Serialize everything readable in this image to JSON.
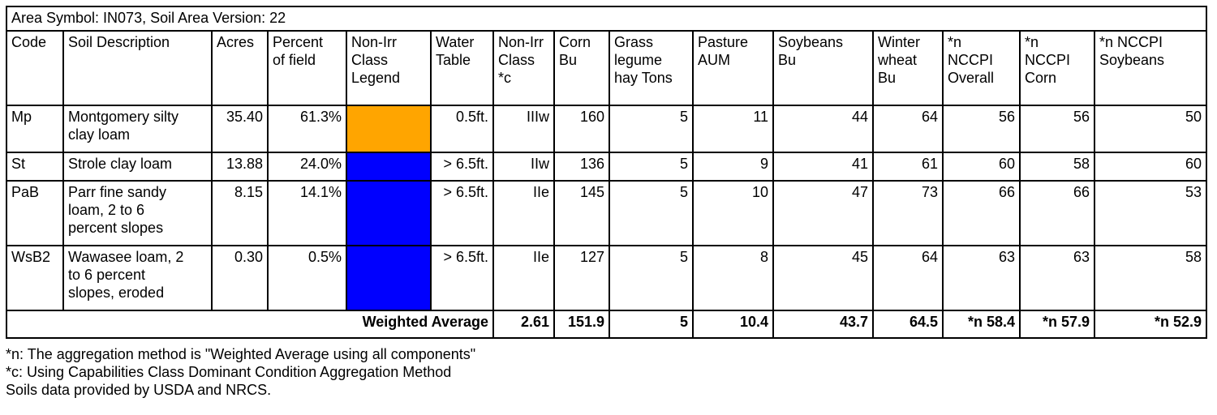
{
  "title": "Area Symbol: IN073, Soil Area Version: 22",
  "headers": {
    "code": "Code",
    "description": "Soil Description",
    "acres": "Acres",
    "percent": [
      "Percent",
      "of field"
    ],
    "legend": [
      "Non-Irr",
      "Class",
      "Legend"
    ],
    "water": [
      "Water",
      "Table"
    ],
    "class": [
      "Non-Irr",
      "Class",
      "*c"
    ],
    "corn": [
      "Corn",
      "Bu"
    ],
    "grass": [
      "Grass",
      "legume",
      "hay Tons"
    ],
    "pasture": [
      "Pasture",
      "AUM"
    ],
    "soybeans": [
      "Soybeans",
      "Bu"
    ],
    "wheat": [
      "Winter",
      "wheat",
      "Bu"
    ],
    "nccpi_overall": [
      "*n",
      "NCCPI",
      "Overall"
    ],
    "nccpi_corn": [
      "*n",
      "NCCPI",
      "Corn"
    ],
    "nccpi_soy": [
      "*n NCCPI",
      "Soybeans"
    ]
  },
  "rows": [
    {
      "code": "Mp",
      "description": [
        "Montgomery silty",
        "clay loam"
      ],
      "acres": "35.40",
      "percent": "61.3%",
      "legend_color": "#FFA500",
      "water": "0.5ft.",
      "class": "IIIw",
      "corn": "160",
      "grass": "5",
      "pasture": "11",
      "soybeans": "44",
      "wheat": "64",
      "nccpi_overall": "56",
      "nccpi_corn": "56",
      "nccpi_soy": "50"
    },
    {
      "code": "St",
      "description": [
        "Strole clay loam"
      ],
      "acres": "13.88",
      "percent": "24.0%",
      "legend_color": "#0000FF",
      "water": "> 6.5ft.",
      "class": "IIw",
      "corn": "136",
      "grass": "5",
      "pasture": "9",
      "soybeans": "41",
      "wheat": "61",
      "nccpi_overall": "60",
      "nccpi_corn": "58",
      "nccpi_soy": "60"
    },
    {
      "code": "PaB",
      "description": [
        "Parr fine sandy",
        "loam, 2 to 6",
        "percent slopes"
      ],
      "acres": "8.15",
      "percent": "14.1%",
      "legend_color": "#0000FF",
      "water": "> 6.5ft.",
      "class": "IIe",
      "corn": "145",
      "grass": "5",
      "pasture": "10",
      "soybeans": "47",
      "wheat": "73",
      "nccpi_overall": "66",
      "nccpi_corn": "66",
      "nccpi_soy": "53"
    },
    {
      "code": "WsB2",
      "description": [
        "Wawasee loam, 2",
        "to 6 percent",
        "slopes, eroded"
      ],
      "acres": "0.30",
      "percent": "0.5%",
      "legend_color": "#0000FF",
      "water": "> 6.5ft.",
      "class": "IIe",
      "corn": "127",
      "grass": "5",
      "pasture": "8",
      "soybeans": "45",
      "wheat": "64",
      "nccpi_overall": "63",
      "nccpi_corn": "63",
      "nccpi_soy": "58"
    }
  ],
  "weighted": {
    "label": "Weighted Average",
    "class": "2.61",
    "corn": "151.9",
    "grass": "5",
    "pasture": "10.4",
    "soybeans": "43.7",
    "wheat": "64.5",
    "nccpi_overall": "*n 58.4",
    "nccpi_corn": "*n 57.9",
    "nccpi_soy": "*n 52.9"
  },
  "notes": [
    "*n: The aggregation method is \"Weighted Average using all components\"",
    "*c: Using Capabilities Class Dominant Condition Aggregation Method",
    "Soils data provided by USDA and NRCS."
  ]
}
